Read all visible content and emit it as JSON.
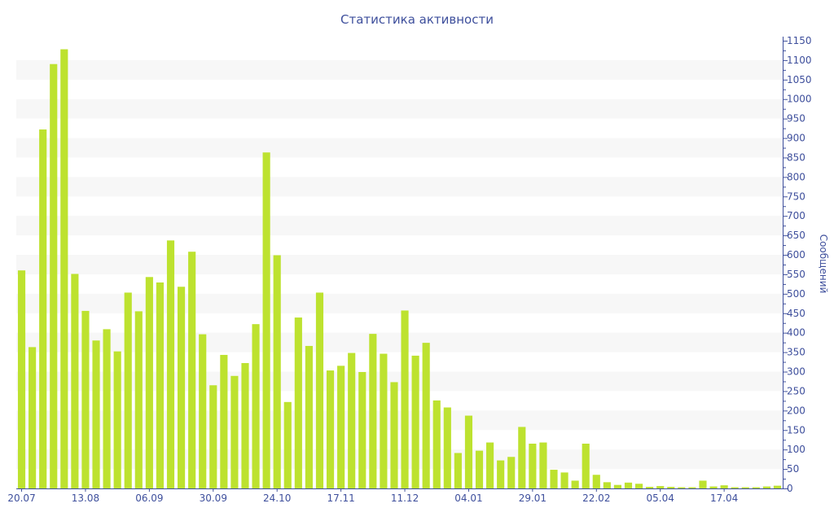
{
  "chart_data": {
    "type": "bar",
    "title": "Статистика активности",
    "ylabel": "Сообщений",
    "xlabel": "",
    "ylim": [
      0,
      1150
    ],
    "y_ticks": [
      0,
      50,
      100,
      150,
      200,
      250,
      300,
      350,
      400,
      450,
      500,
      550,
      600,
      650,
      700,
      750,
      800,
      850,
      900,
      950,
      1000,
      1050,
      1100,
      1150
    ],
    "x_tick_labels": [
      {
        "label": "20.07",
        "index": 0
      },
      {
        "label": "13.08",
        "index": 6
      },
      {
        "label": "06.09",
        "index": 12
      },
      {
        "label": "30.09",
        "index": 18
      },
      {
        "label": "24.10",
        "index": 24
      },
      {
        "label": "17.11",
        "index": 30
      },
      {
        "label": "11.12",
        "index": 36
      },
      {
        "label": "04.01",
        "index": 42
      },
      {
        "label": "29.01",
        "index": 48
      },
      {
        "label": "22.02",
        "index": 54
      },
      {
        "label": "05.04",
        "index": 60
      },
      {
        "label": "17.04",
        "index": 66
      }
    ],
    "values": [
      560,
      363,
      922,
      1090,
      1128,
      551,
      456,
      380,
      409,
      352,
      503,
      455,
      543,
      529,
      637,
      518,
      608,
      396,
      265,
      343,
      289,
      322,
      422,
      863,
      599,
      222,
      439,
      366,
      503,
      303,
      315,
      348,
      299,
      397,
      346,
      273,
      457,
      341,
      374,
      226,
      208,
      91,
      187,
      97,
      118,
      72,
      81,
      158,
      115,
      118,
      48,
      41,
      20,
      115,
      35,
      16,
      9,
      15,
      12,
      4,
      6,
      4,
      3,
      3,
      20,
      5,
      8,
      3,
      3,
      3,
      5,
      7
    ],
    "colors": {
      "bar": "#bde22f",
      "axis": "#3e4f9c",
      "band": "#f7f7f7"
    },
    "grid": "alternating-bands",
    "legend": "none"
  }
}
